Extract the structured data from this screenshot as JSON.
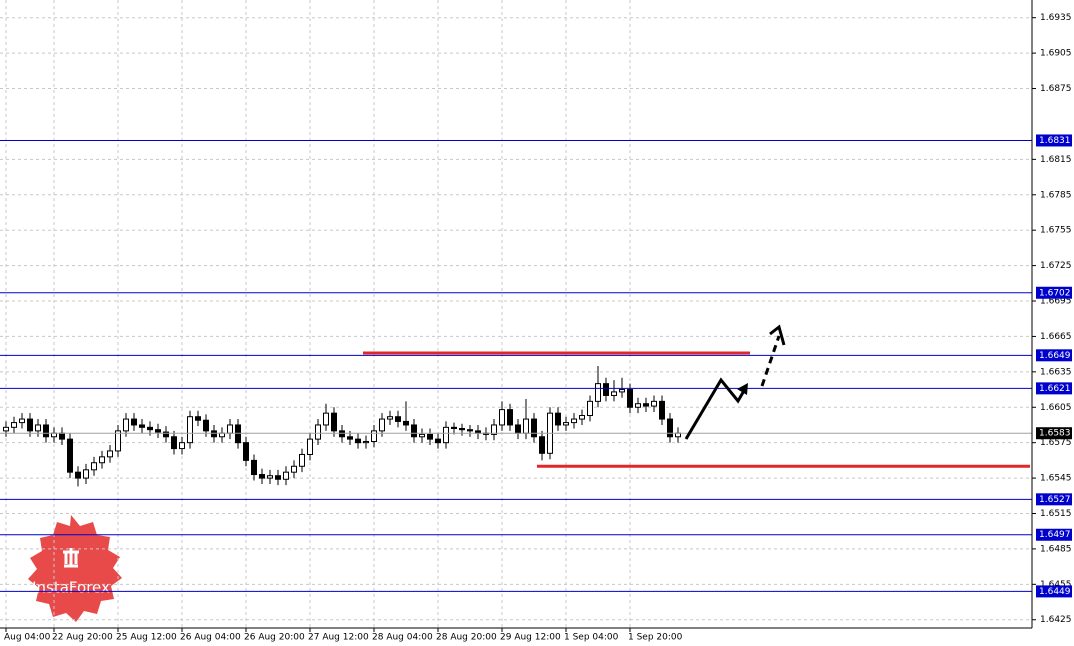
{
  "chart_data": {
    "type": "candlestick",
    "ylim": [
      1.6418,
      1.695
    ],
    "yticks": [
      1.6935,
      1.6905,
      1.6875,
      1.6815,
      1.6785,
      1.6755,
      1.6725,
      1.6695,
      1.6665,
      1.6635,
      1.6605,
      1.6575,
      1.6545,
      1.6515,
      1.6485,
      1.6455,
      1.6425
    ],
    "grid": true,
    "categories": [
      "Aug 04:00",
      null,
      null,
      null,
      null,
      null,
      "22 Aug 20:00",
      null,
      null,
      null,
      null,
      null,
      null,
      null,
      "25 Aug 12:00",
      null,
      null,
      null,
      null,
      null,
      null,
      null,
      "26 Aug 04:00",
      null,
      null,
      null,
      null,
      null,
      null,
      null,
      "26 Aug 20:00",
      null,
      null,
      null,
      null,
      null,
      null,
      null,
      "27 Aug 12:00",
      null,
      null,
      null,
      null,
      null,
      null,
      null,
      "28 Aug 04:00",
      null,
      null,
      null,
      null,
      null,
      null,
      null,
      "28 Aug 20:00",
      null,
      null,
      null,
      null,
      null,
      null,
      null,
      "29 Aug 12:00",
      null,
      null,
      null,
      null,
      null,
      null,
      null,
      "1 Sep 04:00",
      null,
      null,
      null,
      null,
      null,
      null,
      null,
      "1 Sep 20:00",
      null,
      null,
      null,
      null,
      null,
      null
    ],
    "candles": [
      [
        1.6585,
        1.6593,
        1.658,
        1.6588
      ],
      [
        1.6588,
        1.6597,
        1.6583,
        1.6592
      ],
      [
        1.6592,
        1.66,
        1.6587,
        1.6595
      ],
      [
        1.6595,
        1.66,
        1.658,
        1.6585
      ],
      [
        1.6585,
        1.6595,
        1.658,
        1.659
      ],
      [
        1.659,
        1.6595,
        1.6575,
        1.658
      ],
      [
        1.658,
        1.6588,
        1.6575,
        1.6583
      ],
      [
        1.6583,
        1.6588,
        1.6573,
        1.6578
      ],
      [
        1.6578,
        1.6583,
        1.6545,
        1.655
      ],
      [
        1.655,
        1.6555,
        1.6538,
        1.6545
      ],
      [
        1.6545,
        1.6557,
        1.654,
        1.6552
      ],
      [
        1.6552,
        1.6563,
        1.6547,
        1.6558
      ],
      [
        1.6558,
        1.6568,
        1.6553,
        1.6563
      ],
      [
        1.6563,
        1.6573,
        1.6558,
        1.6568
      ],
      [
        1.6568,
        1.659,
        1.6563,
        1.6585
      ],
      [
        1.6585,
        1.66,
        1.658,
        1.6595
      ],
      [
        1.6595,
        1.66,
        1.6585,
        1.659
      ],
      [
        1.659,
        1.6595,
        1.6583,
        1.6588
      ],
      [
        1.6588,
        1.6593,
        1.6581,
        1.6586
      ],
      [
        1.6586,
        1.6591,
        1.6579,
        1.6584
      ],
      [
        1.6584,
        1.6589,
        1.6575,
        1.658
      ],
      [
        1.658,
        1.6585,
        1.6565,
        1.657
      ],
      [
        1.657,
        1.658,
        1.6565,
        1.6575
      ],
      [
        1.6575,
        1.6602,
        1.657,
        1.6597
      ],
      [
        1.6597,
        1.6602,
        1.6589,
        1.6594
      ],
      [
        1.6594,
        1.6599,
        1.658,
        1.6585
      ],
      [
        1.6585,
        1.659,
        1.6575,
        1.658
      ],
      [
        1.658,
        1.6588,
        1.6575,
        1.6583
      ],
      [
        1.6583,
        1.6595,
        1.6578,
        1.659
      ],
      [
        1.659,
        1.6595,
        1.657,
        1.6575
      ],
      [
        1.6575,
        1.658,
        1.6555,
        1.656
      ],
      [
        1.656,
        1.6565,
        1.6543,
        1.6548
      ],
      [
        1.6548,
        1.6553,
        1.654,
        1.6545
      ],
      [
        1.6545,
        1.6552,
        1.654,
        1.6547
      ],
      [
        1.6547,
        1.6552,
        1.6539,
        1.6544
      ],
      [
        1.6544,
        1.6555,
        1.6539,
        1.655
      ],
      [
        1.655,
        1.656,
        1.6545,
        1.6555
      ],
      [
        1.6555,
        1.657,
        1.655,
        1.6565
      ],
      [
        1.6565,
        1.6583,
        1.656,
        1.6578
      ],
      [
        1.6578,
        1.6595,
        1.6573,
        1.659
      ],
      [
        1.659,
        1.6608,
        1.6585,
        1.66
      ],
      [
        1.66,
        1.6605,
        1.658,
        1.6585
      ],
      [
        1.6585,
        1.659,
        1.6575,
        1.658
      ],
      [
        1.658,
        1.6585,
        1.6573,
        1.6578
      ],
      [
        1.6578,
        1.6583,
        1.657,
        1.6575
      ],
      [
        1.6575,
        1.6581,
        1.657,
        1.6576
      ],
      [
        1.6576,
        1.659,
        1.6571,
        1.6585
      ],
      [
        1.6585,
        1.66,
        1.658,
        1.6595
      ],
      [
        1.6595,
        1.6602,
        1.659,
        1.6597
      ],
      [
        1.6597,
        1.6602,
        1.6588,
        1.6593
      ],
      [
        1.6593,
        1.661,
        1.6585,
        1.659
      ],
      [
        1.659,
        1.6595,
        1.6575,
        1.658
      ],
      [
        1.658,
        1.6587,
        1.6575,
        1.6582
      ],
      [
        1.6582,
        1.6587,
        1.6573,
        1.6578
      ],
      [
        1.6578,
        1.6583,
        1.657,
        1.6575
      ],
      [
        1.6575,
        1.6593,
        1.657,
        1.6588
      ],
      [
        1.6588,
        1.6592,
        1.6582,
        1.6587
      ],
      [
        1.6587,
        1.6591,
        1.6581,
        1.6586
      ],
      [
        1.6586,
        1.659,
        1.658,
        1.6585
      ],
      [
        1.6585,
        1.659,
        1.6578,
        1.6583
      ],
      [
        1.6583,
        1.6588,
        1.6577,
        1.6582
      ],
      [
        1.6582,
        1.6595,
        1.6577,
        1.659
      ],
      [
        1.659,
        1.661,
        1.6585,
        1.6603
      ],
      [
        1.6603,
        1.6608,
        1.6585,
        1.659
      ],
      [
        1.659,
        1.6595,
        1.6578,
        1.6583
      ],
      [
        1.6583,
        1.6612,
        1.6578,
        1.6595
      ],
      [
        1.6595,
        1.66,
        1.6575,
        1.658
      ],
      [
        1.658,
        1.6585,
        1.656,
        1.6566
      ],
      [
        1.6566,
        1.6605,
        1.6561,
        1.66
      ],
      [
        1.66,
        1.6605,
        1.6585,
        1.659
      ],
      [
        1.659,
        1.6597,
        1.6585,
        1.6592
      ],
      [
        1.6592,
        1.66,
        1.6587,
        1.6595
      ],
      [
        1.6595,
        1.6603,
        1.659,
        1.6598
      ],
      [
        1.6598,
        1.6615,
        1.6593,
        1.661
      ],
      [
        1.661,
        1.664,
        1.6605,
        1.6625
      ],
      [
        1.6625,
        1.663,
        1.661,
        1.6615
      ],
      [
        1.6615,
        1.6628,
        1.661,
        1.6618
      ],
      [
        1.6618,
        1.663,
        1.6613,
        1.662
      ],
      [
        1.662,
        1.6625,
        1.66,
        1.6605
      ],
      [
        1.6605,
        1.6613,
        1.66,
        1.6608
      ],
      [
        1.6608,
        1.6613,
        1.6601,
        1.6606
      ],
      [
        1.6606,
        1.6615,
        1.6601,
        1.661
      ],
      [
        1.661,
        1.6615,
        1.659,
        1.6595
      ],
      [
        1.6595,
        1.66,
        1.6575,
        1.658
      ],
      [
        1.658,
        1.6588,
        1.6575,
        1.6583
      ]
    ],
    "levels": [
      1.6831,
      1.6702,
      1.6649,
      1.6621,
      1.6527,
      1.6497,
      1.6449
    ],
    "level_color": "#0000cd",
    "current_price": 1.6583,
    "red_lines": [
      1.6651,
      1.6555
    ],
    "red_color": "#e02828",
    "logo": "InstaForex"
  }
}
